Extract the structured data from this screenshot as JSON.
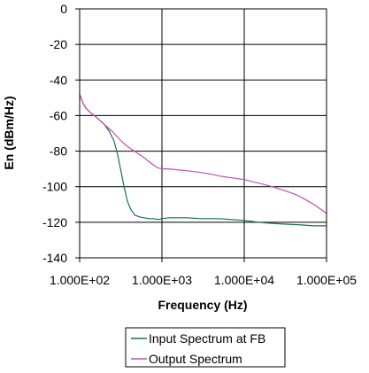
{
  "chart_data": {
    "type": "line",
    "title": "",
    "xlabel": "Frequency (Hz)",
    "ylabel": "En (dBm/Hz)",
    "xscale": "log",
    "xlim": [
      100,
      100000
    ],
    "ylim": [
      -140,
      0
    ],
    "x_ticks": [
      100,
      1000,
      10000,
      100000
    ],
    "x_tick_labels": [
      "1.000E+02",
      "1.000E+03",
      "1.000E+04",
      "1.000E+05"
    ],
    "y_ticks": [
      0,
      -20,
      -40,
      -60,
      -80,
      -100,
      -120,
      -140
    ],
    "y_tick_labels": [
      "0",
      "-20",
      "-40",
      "-60",
      "-80",
      "-100",
      "-120",
      "-140"
    ],
    "grid": true,
    "legend_position": "bottom-center",
    "series": [
      {
        "name": "Input Spectrum at FB",
        "color": "#1a6b5f",
        "x": [
          100,
          110,
          120,
          140,
          160,
          200,
          230,
          260,
          290,
          320,
          350,
          380,
          420,
          470,
          530,
          600,
          700,
          800,
          900,
          1000,
          1200,
          1500,
          2000,
          3000,
          4000,
          5000,
          7000,
          10000,
          15000,
          20000,
          30000,
          50000,
          70000,
          100000
        ],
        "y": [
          -48,
          -53,
          -56,
          -59,
          -61,
          -65,
          -69,
          -74,
          -82,
          -92,
          -101,
          -108,
          -113,
          -116,
          -117,
          -117.5,
          -118,
          -118,
          -118.5,
          -118,
          -117.5,
          -117.5,
          -117.5,
          -118,
          -118,
          -118,
          -118.5,
          -119,
          -120,
          -120.5,
          -121,
          -121.5,
          -122,
          -122
        ]
      },
      {
        "name": "Output Spectrum",
        "color": "#c050b0",
        "x": [
          100,
          110,
          120,
          140,
          160,
          200,
          250,
          300,
          350,
          400,
          500,
          600,
          700,
          800,
          900,
          1000,
          1200,
          1500,
          2000,
          3000,
          4000,
          5000,
          7000,
          10000,
          15000,
          20000,
          30000,
          40000,
          50000,
          70000,
          100000
        ],
        "y": [
          -48,
          -53,
          -56,
          -59,
          -61,
          -65,
          -69,
          -73,
          -76,
          -78,
          -81,
          -83.5,
          -86,
          -88,
          -89.5,
          -90,
          -90,
          -90.5,
          -91,
          -92,
          -93,
          -94,
          -95,
          -96,
          -98,
          -99.5,
          -102,
          -104,
          -106,
          -110,
          -115
        ]
      }
    ]
  },
  "legend": {
    "items": [
      {
        "label": "Input Spectrum at FB",
        "color": "#1a6b5f"
      },
      {
        "label": "Output Spectrum",
        "color": "#c050b0"
      }
    ]
  }
}
